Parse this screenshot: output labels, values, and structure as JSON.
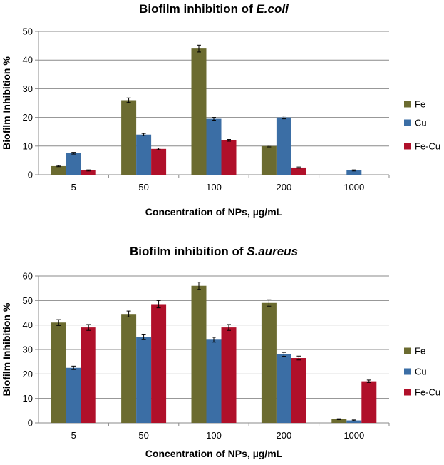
{
  "chart_data": [
    {
      "type": "bar",
      "title": "Biofilm inhibition of",
      "title_italic": "E.coli",
      "xlabel": "Concentration of NPs, µg/mL",
      "ylabel": "Biofilm Inhibition %",
      "categories": [
        "5",
        "50",
        "100",
        "200",
        "1000"
      ],
      "ylim": [
        0,
        50
      ],
      "yticks": [
        0,
        10,
        20,
        30,
        40,
        50
      ],
      "grid": true,
      "legend_position": "right",
      "series": [
        {
          "name": "Fe",
          "color": "#6b6b30",
          "values": [
            3,
            26,
            44,
            10,
            null
          ],
          "errors": [
            0.2,
            0.8,
            1.2,
            0.3,
            null
          ]
        },
        {
          "name": "Cu",
          "color": "#3b6ea5",
          "values": [
            7.5,
            14,
            19.5,
            20,
            1.5
          ],
          "errors": [
            0.3,
            0.4,
            0.5,
            0.5,
            0.2
          ]
        },
        {
          "name": "Fe-Cu",
          "color": "#b0102a",
          "values": [
            1.5,
            9,
            12,
            2.5,
            null
          ],
          "errors": [
            0.2,
            0.3,
            0.3,
            0.2,
            null
          ]
        }
      ]
    },
    {
      "type": "bar",
      "title": "Biofilm inhibition of",
      "title_italic": "S.aureus",
      "xlabel": "Concentration of NPs, µg/mL",
      "ylabel": "Biofilm Inhibition %",
      "categories": [
        "5",
        "50",
        "100",
        "200",
        "1000"
      ],
      "ylim": [
        0,
        60
      ],
      "yticks": [
        0,
        10,
        20,
        30,
        40,
        50,
        60
      ],
      "grid": true,
      "legend_position": "right",
      "series": [
        {
          "name": "Fe",
          "color": "#6b6b30",
          "values": [
            41,
            44.5,
            56,
            49,
            1.5
          ],
          "errors": [
            1.2,
            1.2,
            1.5,
            1.3,
            0.2
          ]
        },
        {
          "name": "Cu",
          "color": "#3b6ea5",
          "values": [
            22.5,
            35,
            34,
            28,
            1
          ],
          "errors": [
            0.7,
            1,
            1,
            0.8,
            0.2
          ]
        },
        {
          "name": "Fe-Cu",
          "color": "#b0102a",
          "values": [
            39,
            48.5,
            39,
            26.5,
            17
          ],
          "errors": [
            1.2,
            1.5,
            1.2,
            0.8,
            0.5
          ]
        }
      ]
    }
  ]
}
